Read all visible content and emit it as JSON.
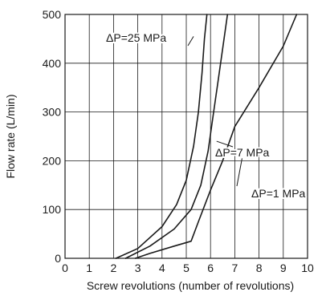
{
  "chart_data": {
    "type": "line",
    "xlabel": "Screw revolutions (number of revolutions)",
    "ylabel": "Flow rate (L/min)",
    "xlim": [
      0,
      10
    ],
    "ylim": [
      0,
      500
    ],
    "x_ticks": [
      "0",
      "1",
      "2",
      "3",
      "4",
      "5",
      "6",
      "7",
      "8",
      "9",
      "10"
    ],
    "y_ticks": [
      "0",
      "100",
      "200",
      "300",
      "400",
      "500"
    ],
    "grid": true,
    "series": [
      {
        "name": "ΔP=25 MPa",
        "points": [
          [
            2.1,
            0
          ],
          [
            3,
            20
          ],
          [
            4,
            65
          ],
          [
            4.6,
            110
          ],
          [
            5,
            160
          ],
          [
            5.3,
            230
          ],
          [
            5.5,
            300
          ],
          [
            5.65,
            380
          ],
          [
            5.75,
            450
          ],
          [
            5.85,
            500
          ]
        ]
      },
      {
        "name": "ΔP=7 MPa",
        "points": [
          [
            2.5,
            0
          ],
          [
            3.5,
            25
          ],
          [
            4.5,
            60
          ],
          [
            5.2,
            100
          ],
          [
            5.6,
            150
          ],
          [
            5.9,
            220
          ],
          [
            6.1,
            290
          ],
          [
            6.3,
            360
          ],
          [
            6.5,
            430
          ],
          [
            6.7,
            500
          ]
        ]
      },
      {
        "name": "ΔP=1 MPa",
        "points": [
          [
            2.9,
            0
          ],
          [
            3.5,
            10
          ],
          [
            4.5,
            25
          ],
          [
            5.2,
            35
          ],
          [
            5.5,
            75
          ],
          [
            6,
            140
          ],
          [
            6.5,
            200
          ],
          [
            7,
            270
          ],
          [
            8,
            350
          ],
          [
            9,
            435
          ],
          [
            9.55,
            500
          ]
        ]
      }
    ],
    "annotations": [
      {
        "text": "ΔP=25 MPa",
        "series": 0,
        "leader_to": [
          5.3,
          455
        ]
      },
      {
        "text": "ΔP=7 MPa",
        "series": 1,
        "leader_to": [
          6.25,
          240
        ]
      },
      {
        "text": "ΔP=1 MPa",
        "series": 2,
        "leader_to": [
          7.3,
          205
        ]
      }
    ]
  }
}
